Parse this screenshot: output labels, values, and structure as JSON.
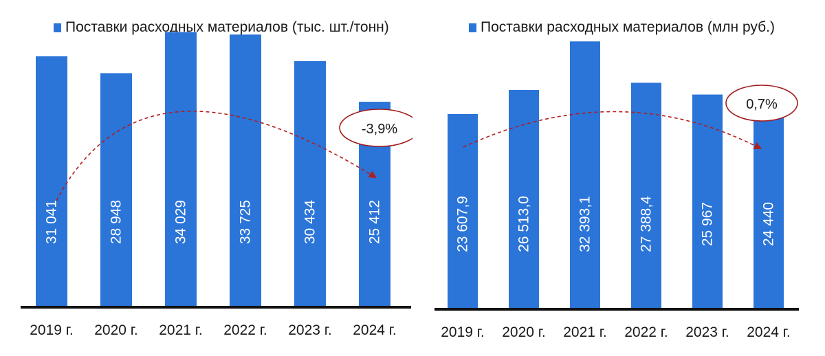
{
  "chart_data": [
    {
      "type": "bar",
      "legend": "Поставки расходных материалов (тыс. шт./тонн)",
      "categories": [
        "2019 г.",
        "2020 г.",
        "2021 г.",
        "2022 г.",
        "2023 г.",
        "2024 г."
      ],
      "series": [
        {
          "name": "Поставки расходных материалов (тыс. шт./тонн)",
          "values": [
            31041,
            28948,
            34029,
            33725,
            30434,
            25412
          ],
          "labels": [
            "31 041",
            "28 948",
            "34 029",
            "33 725",
            "30 434",
            "25 412"
          ]
        }
      ],
      "ylim": [
        0,
        38000
      ],
      "annotation": "-3,9%",
      "legend_position": "top",
      "color": "#2b74d8"
    },
    {
      "type": "bar",
      "legend": "Поставки расходных материалов (млн руб.)",
      "categories": [
        "2019 г.",
        "2020 г.",
        "2021 г.",
        "2022 г.",
        "2023 г.",
        "2024 г."
      ],
      "series": [
        {
          "name": "Поставки расходных материалов (млн руб.)",
          "values": [
            23607.9,
            26513.0,
            32393.1,
            27388.4,
            25967,
            24440
          ],
          "labels": [
            "23 607,9",
            "26 513,0",
            "32 393,1",
            "27 388,4",
            "25 967",
            "24 440"
          ]
        }
      ],
      "ylim": [
        0,
        37400
      ],
      "annotation": "0,7%",
      "legend_position": "top",
      "color": "#2b74d8"
    }
  ]
}
